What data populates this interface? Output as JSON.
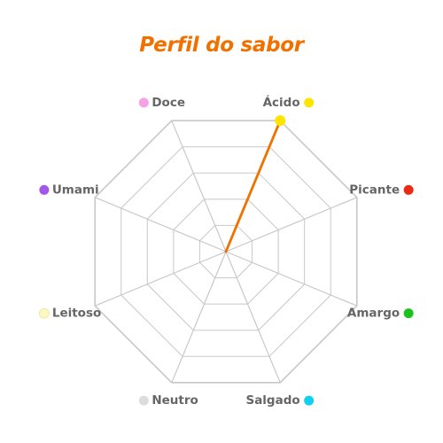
{
  "chart_data": {
    "type": "radar",
    "title": "Perfil do sabor",
    "axes": [
      {
        "label": "Ácido",
        "color": "#ffe400"
      },
      {
        "label": "Picante",
        "color": "#ea2a12"
      },
      {
        "label": "Amargo",
        "color": "#1cc21c"
      },
      {
        "label": "Salgado",
        "color": "#10d0f0"
      },
      {
        "label": "Neutro",
        "color": "#dcdcdc"
      },
      {
        "label": "Leitoso",
        "color": "#fbf8c2"
      },
      {
        "label": "Umami",
        "color": "#a456e8"
      },
      {
        "label": "Doce",
        "color": "#f8a0e4"
      }
    ],
    "range": [
      0,
      5
    ],
    "rings": 5,
    "series": [
      {
        "color": "#f07000",
        "values": [
          5,
          0,
          0,
          0,
          0,
          0,
          0,
          0
        ]
      }
    ],
    "grid": true,
    "grid_color": "#c8c8c8"
  }
}
